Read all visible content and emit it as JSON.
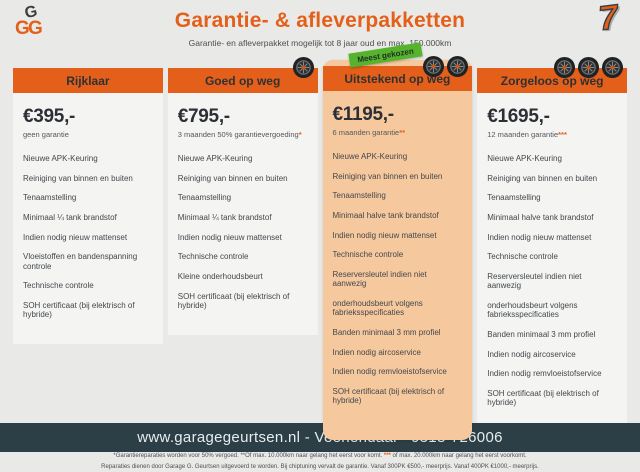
{
  "page": {
    "title": "Garantie- & afleverpakketten",
    "subtitle": "Garantie- en afleverpakket mogelijk tot 8 jaar oud en max. 150.000km",
    "logo_letters": [
      "G",
      "G",
      "G"
    ],
    "corner_logo": "7"
  },
  "packages": [
    {
      "name": "Rijklaar",
      "price": "€395,-",
      "note": "geen garantie",
      "note_stars": "",
      "tires": 0,
      "badge": "",
      "featured": false,
      "features": [
        "Nieuwe APK-Keuring",
        "Reiniging van binnen en buiten",
        "Tenaamstelling",
        "Minimaal ¼  tank brandstof",
        "Indien nodig nieuw mattenset",
        "Vloeistoffen en bandenspanning controle",
        "Technische controle",
        "SOH certificaat (bij elektrisch of hybride)"
      ]
    },
    {
      "name": "Goed op weg",
      "price": "€795,-",
      "note": "3 maanden 50% garantievergoeding",
      "note_stars": "*",
      "tires": 1,
      "badge": "",
      "featured": false,
      "features": [
        "Nieuwe APK-Keuring",
        "Reiniging van binnen en buiten",
        "Tenaamstelling",
        "Minimaal ¼ tank brandstof",
        "Indien nodig nieuw mattenset",
        "Technische controle",
        "Kleine onderhoudsbeurt",
        "SOH certificaat (bij elektrisch of hybride)"
      ]
    },
    {
      "name": "Uitstekend op weg",
      "price": "€1195,-",
      "note": "6 maanden garantie",
      "note_stars": "**",
      "tires": 2,
      "badge": "Meest gekozen",
      "featured": true,
      "features": [
        "Nieuwe APK-Keuring",
        "Reiniging van binnen en buiten",
        "Tenaamstelling",
        "Minimaal halve tank brandstof",
        "Indien nodig nieuw mattenset",
        "Technische controle",
        "Reserversleutel indien niet aanwezig",
        "onderhoudsbeurt volgens fabrieksspecificaties",
        "Banden minimaal 3 mm profiel",
        "Indien nodig aircoservice",
        "Indien nodig remvloeistofservice",
        "SOH certificaat (bij elektrisch of hybride)"
      ]
    },
    {
      "name": "Zorgeloos op weg",
      "price": "€1695,-",
      "note": "12 maanden garantie",
      "note_stars": "***",
      "tires": 3,
      "badge": "",
      "featured": false,
      "features": [
        "Nieuwe APK-Keuring",
        "Reiniging van binnen en buiten",
        "Tenaamstelling",
        "Minimaal halve tank brandstof",
        "Indien nodig nieuw mattenset",
        "Technische controle",
        "Reserversleutel indien niet aanwezig",
        "onderhoudsbeurt volgens fabrieksspecificaties",
        "Banden minimaal 3 mm profiel",
        "Indien nodig aircoservice",
        "Indien nodig remvloeistofservice",
        "SOH certificaat (bij elektrisch of hybride)"
      ]
    }
  ],
  "footnotes": {
    "line1_parts": [
      {
        "t": "*Garantiereparaties worden voor 50% vergoed. **Of max. 10.000km naar gelang het eerst voor komt. ",
        "accent": false
      },
      {
        "t": "***",
        "accent": true
      },
      {
        "t": " of max. 20.000km naar gelang het eerst voorkomt.",
        "accent": false
      }
    ],
    "line2": "Reparaties dienen door Garage G. Geurtsen uitgevoerd te worden. Bij chiptuning vervalt de garantie. Vanaf 300PK €500,- meerprijs. Vanaf 400PK €1000,- meerprijs."
  },
  "footer": {
    "text": "www.garagegeurtsen.nl - Veenendaal - 0318-726006"
  },
  "colors": {
    "accent": "#e4601a",
    "featured_bg": "#f6c89e",
    "badge_green": "#55b32c",
    "footer_bg": "#2c3f46",
    "card_bg": "#f4f4f2",
    "page_bg": "#e9eae7"
  }
}
